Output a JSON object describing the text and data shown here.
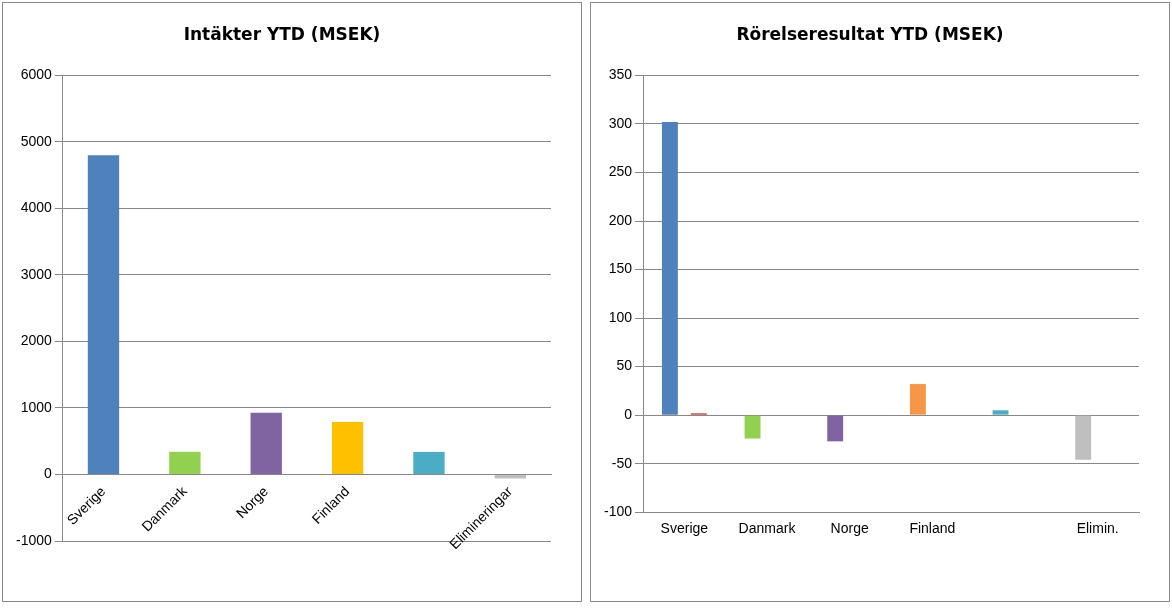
{
  "chart_data": [
    {
      "type": "bar",
      "title": "Intäkter YTD (MSEK)",
      "categories": [
        "Sverige",
        "Danmark",
        "Norge",
        "Finland",
        null,
        "Elimineringar"
      ],
      "values": [
        4800,
        340,
        930,
        790,
        340,
        -60
      ],
      "colors": [
        "#4f81bd",
        "#92d050",
        "#8064a2",
        "#ffc000",
        "#4bacc6",
        "#bfbfbf"
      ],
      "ylim": [
        -1000,
        6000
      ],
      "yticks": [
        -1000,
        0,
        1000,
        2000,
        3000,
        4000,
        5000,
        6000
      ],
      "grid": "y",
      "legend": false
    },
    {
      "type": "bar",
      "title": "Rörelseresultat YTD (MSEK)",
      "categories": [
        "Sverige",
        "Danmark",
        "Norge",
        "Finland",
        null,
        "Elimin."
      ],
      "series": [
        {
          "colors": [
            "#4f81bd",
            "#92d050",
            "#8064a2",
            "#f79646",
            "#4bacc6",
            "#bfbfbf"
          ],
          "values": [
            302,
            -24,
            -27,
            32,
            5,
            -46
          ]
        },
        {
          "color": "#c0504d",
          "values": [
            2,
            0,
            0,
            0,
            0,
            0
          ]
        }
      ],
      "ylim": [
        -100,
        350
      ],
      "yticks": [
        -100,
        -50,
        0,
        50,
        100,
        150,
        200,
        250,
        300,
        350
      ],
      "grid": "y",
      "legend": false
    }
  ]
}
